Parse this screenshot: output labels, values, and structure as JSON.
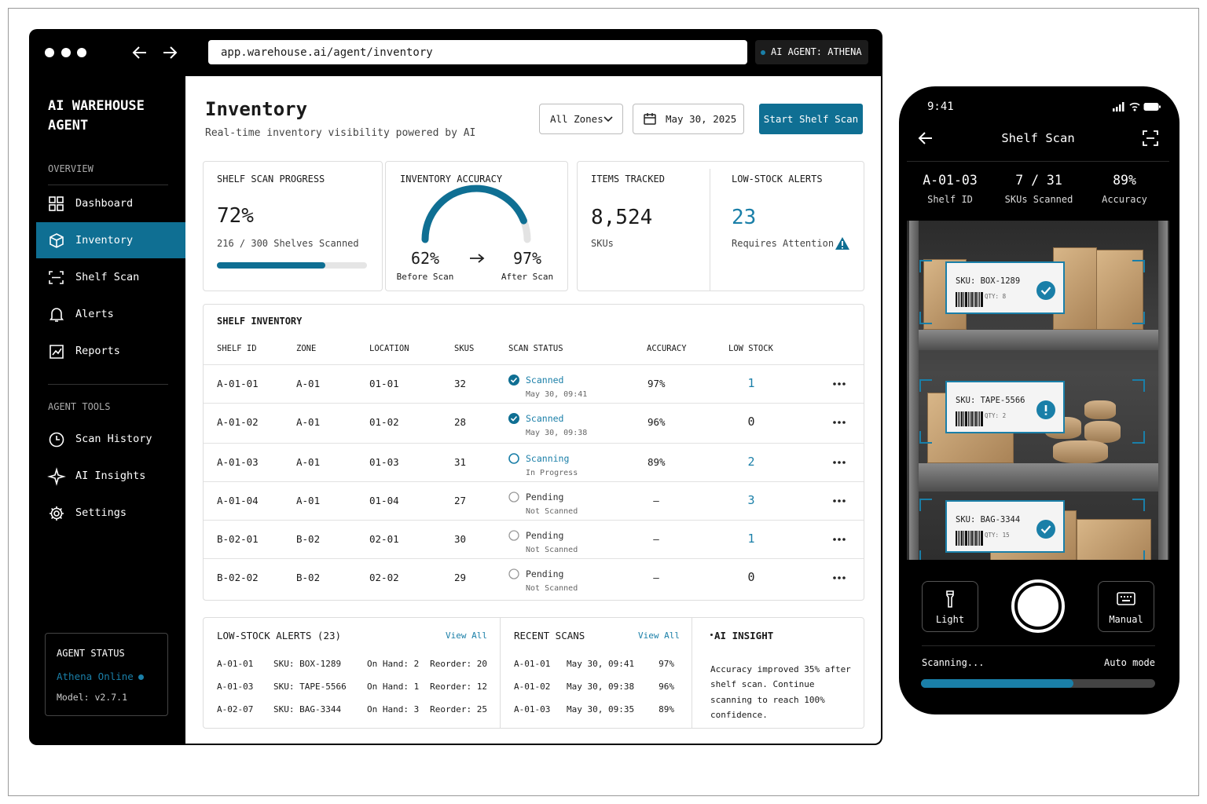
{
  "browser": {
    "url": "app.warehouse.ai/agent/inventory",
    "agent_badge": "AI AGENT: ATHENA"
  },
  "sidebar": {
    "brand": [
      "AI WAREHOUSE",
      "AGENT"
    ],
    "sections": [
      {
        "title": "OVERVIEW",
        "items": [
          "Dashboard",
          "Inventory",
          "Shelf Scan",
          "Alerts",
          "Reports"
        ]
      },
      {
        "title": "AGENT TOOLS",
        "items": [
          "Scan History",
          "AI Insights",
          "Settings"
        ]
      }
    ],
    "agent_status": {
      "title": "AGENT STATUS",
      "status": "Athena Online",
      "model": "Model: v2.7.1"
    }
  },
  "header": {
    "title": "Inventory",
    "subtitle": "Real-time inventory visibility powered by AI",
    "zone_filter": "All Zones",
    "date": "May 30, 2025",
    "action": "Start Shelf Scan"
  },
  "metrics": {
    "progress": {
      "title": "SHELF SCAN PROGRESS",
      "value": "72%",
      "detail": "216 / 300 Shelves Scanned"
    },
    "accuracy": {
      "title": "INVENTORY ACCURACY",
      "before": {
        "value": "62%",
        "label": "Before Scan"
      },
      "after": {
        "value": "97%",
        "label": "After Scan"
      }
    },
    "items": {
      "title": "ITEMS TRACKED",
      "value": "8,524",
      "detail": "SKUs"
    },
    "alerts": {
      "title": "LOW-STOCK ALERTS",
      "value": "23",
      "detail": "Requires Attention"
    }
  },
  "table": {
    "title": "SHELF INVENTORY",
    "columns": [
      "SHELF ID",
      "ZONE",
      "LOCATION",
      "SKUS",
      "SCAN STATUS",
      "ACCURACY",
      "LOW STOCK"
    ],
    "rows": [
      [
        "A-01-01",
        "A-01",
        "01-01",
        "32",
        {
          "status": "Scanned",
          "detail": "May 30, 09:41"
        },
        "97%",
        "1"
      ],
      [
        "A-01-02",
        "A-01",
        "01-02",
        "28",
        {
          "status": "Scanned",
          "detail": "May 30, 09:38"
        },
        "96%",
        "0"
      ],
      [
        "A-01-03",
        "A-01",
        "01-03",
        "31",
        {
          "status": "Scanning",
          "detail": "In Progress"
        },
        "89%",
        "2"
      ],
      [
        "A-01-04",
        "A-01",
        "01-04",
        "27",
        {
          "status": "Pending",
          "detail": "Not Scanned"
        },
        "—",
        "3"
      ],
      [
        "B-02-01",
        "B-02",
        "02-01",
        "30",
        {
          "status": "Pending",
          "detail": "Not Scanned"
        },
        "—",
        "1"
      ],
      [
        "B-02-02",
        "B-02",
        "02-02",
        "29",
        {
          "status": "Pending",
          "detail": "Not Scanned"
        },
        "—",
        "0"
      ]
    ]
  },
  "low_stock": {
    "title": "LOW-STOCK ALERTS (23)",
    "link": "View All",
    "rows": [
      [
        "A-01-01",
        "SKU: BOX-1289",
        "On Hand: 2",
        "Reorder: 20"
      ],
      [
        "A-01-03",
        "SKU: TAPE-5566",
        "On Hand: 1",
        "Reorder: 12"
      ],
      [
        "A-02-07",
        "SKU: BAG-3344",
        "On Hand: 3",
        "Reorder: 25"
      ]
    ]
  },
  "recent_scans": {
    "title": "RECENT SCANS",
    "link": "View All",
    "rows": [
      [
        "A-01-01",
        "May 30, 09:41",
        "97%"
      ],
      [
        "A-01-02",
        "May 30, 09:38",
        "96%"
      ],
      [
        "A-01-03",
        "May 30, 09:35",
        "89%"
      ]
    ]
  },
  "ai_insight": {
    "title": "AI INSIGHT",
    "text": "Accuracy improved 35% after shelf scan. Continue scanning to reach 100% confidence."
  },
  "phone": {
    "time": "9:41",
    "title": "Shelf Scan",
    "stats": [
      {
        "value": "A-01-03",
        "label": "Shelf ID"
      },
      {
        "value": "7 / 31",
        "label": "SKUs Scanned"
      },
      {
        "value": "89%",
        "label": "Accuracy"
      }
    ],
    "tags": [
      {
        "sku": "SKU: BOX-1289",
        "qty": "QTY: 8"
      },
      {
        "sku": "SKU: TAPE-5566",
        "qty": "QTY: 2"
      },
      {
        "sku": "SKU: BAG-3344",
        "qty": "QTY: 15"
      }
    ],
    "controls": [
      "Light",
      "Manual"
    ],
    "status": "Scanning...",
    "mode": "Auto mode"
  }
}
